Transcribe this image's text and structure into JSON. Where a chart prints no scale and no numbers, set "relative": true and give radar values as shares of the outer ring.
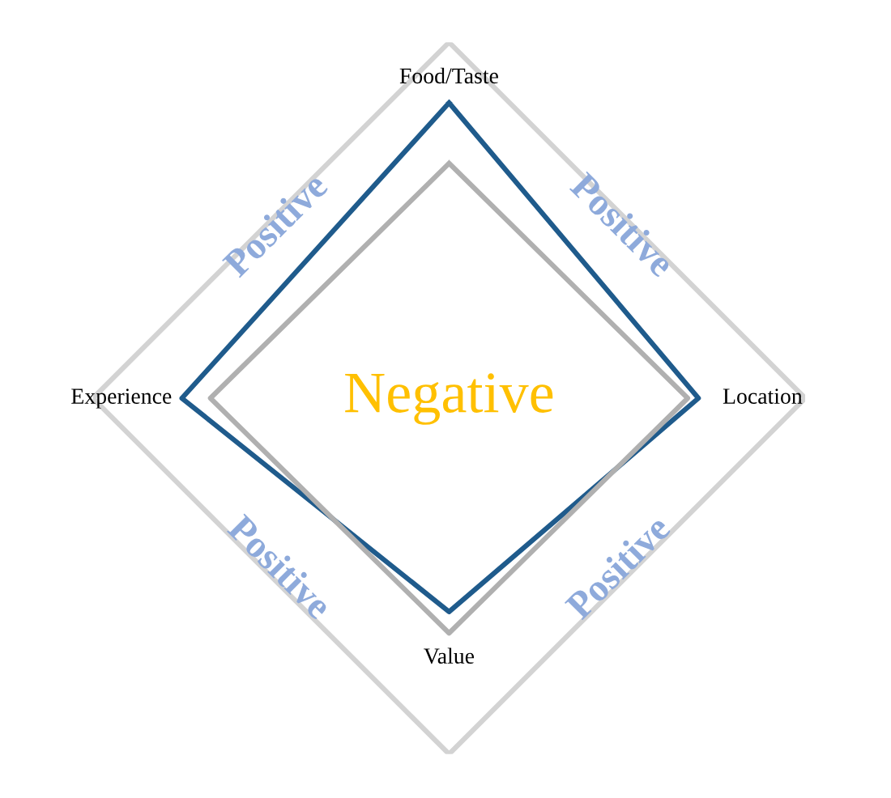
{
  "chart_data": {
    "type": "radar",
    "relative": true,
    "categories": [
      "Food/Taste",
      "Location",
      "Value",
      "Experience"
    ],
    "series": [
      {
        "color": "#1f5b8c",
        "values": [
          0.83,
          0.7,
          0.6,
          0.75
        ]
      },
      {
        "color": "#b0b0b0",
        "values": [
          0.66,
          0.67,
          0.66,
          0.67
        ]
      }
    ],
    "annotations": [
      "Positive",
      "Positive",
      "Positive",
      "Positive",
      "Negative"
    ],
    "grid": false,
    "marker": "none",
    "line_style": "solid"
  }
}
